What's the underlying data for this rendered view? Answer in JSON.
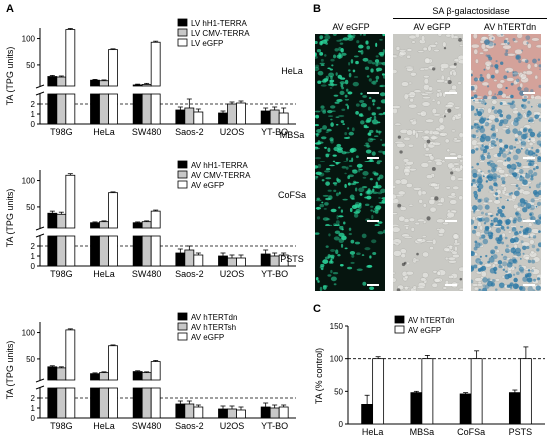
{
  "panel_letters": {
    "a": "A",
    "b": "B",
    "c": "C"
  },
  "panel_b": {
    "group_header": "SA β-galactosidase",
    "columns": [
      "AV eGFP",
      "AV eGFP",
      "AV hTERTdn"
    ],
    "rows": [
      "HeLa",
      "MBSa",
      "CoFSa",
      "PSTS"
    ]
  },
  "chart_data": [
    {
      "type": "bar",
      "title": "",
      "ylabel": "TA (TPG units)",
      "categories": [
        "T98G",
        "HeLa",
        "SW480",
        "Saos-2",
        "U2OS",
        "YT-BO"
      ],
      "axis_break": true,
      "ylim_lower": [
        0,
        3
      ],
      "ylim_upper": [
        10,
        120
      ],
      "yticks_lower": [
        0,
        1,
        2
      ],
      "yticks_upper": [
        50,
        100
      ],
      "reference_line": 2,
      "legend_position": "top-right",
      "series": [
        {
          "name": "LV hH1-TERRA",
          "color": "#000000",
          "values": [
            28,
            21,
            12,
            1.4,
            1.1,
            1.3
          ],
          "errors": [
            2,
            1.5,
            1.5,
            0.3,
            0.2,
            0.3
          ]
        },
        {
          "name": "LV CMV-TERRA",
          "color": "#c8c8c8",
          "values": [
            27,
            20,
            13,
            1.6,
            2.0,
            1.4
          ],
          "errors": [
            2,
            1.5,
            2,
            0.9,
            0.2,
            0.3
          ]
        },
        {
          "name": "LV eGFP",
          "color": "#ffffff",
          "values": [
            117,
            79,
            93,
            1.2,
            2.1,
            1.1
          ],
          "errors": [
            2,
            1.5,
            2,
            0.3,
            0.2,
            0.5
          ]
        }
      ]
    },
    {
      "type": "bar",
      "title": "",
      "ylabel": "TA (TPG units)",
      "categories": [
        "T98G",
        "HeLa",
        "SW480",
        "Saos-2",
        "U2OS",
        "YT-BO"
      ],
      "axis_break": true,
      "ylim_lower": [
        0,
        3
      ],
      "ylim_upper": [
        10,
        120
      ],
      "yticks_lower": [
        0,
        1,
        2
      ],
      "yticks_upper": [
        50,
        100
      ],
      "reference_line": 2,
      "legend_position": "top-right",
      "series": [
        {
          "name": "AV hH1-TERRA",
          "color": "#000000",
          "values": [
            38,
            20,
            20,
            1.3,
            1.0,
            1.2
          ],
          "errors": [
            4,
            1.5,
            1.5,
            0.4,
            0.3,
            0.4
          ]
        },
        {
          "name": "AV CMV-TERRA",
          "color": "#c8c8c8",
          "values": [
            36,
            22,
            22,
            1.6,
            0.8,
            1.0
          ],
          "errors": [
            4,
            1.5,
            1.5,
            0.4,
            0.3,
            0.3
          ]
        },
        {
          "name": "AV eGFP",
          "color": "#ffffff",
          "values": [
            110,
            77,
            42,
            1.1,
            0.8,
            1.1
          ],
          "errors": [
            3,
            1.5,
            2,
            0.2,
            0.3,
            0.2
          ]
        }
      ]
    },
    {
      "type": "bar",
      "title": "",
      "ylabel": "TA (TPG units)",
      "categories": [
        "T98G",
        "HeLa",
        "SW480",
        "Saos-2",
        "U2OS",
        "YT-BO"
      ],
      "axis_break": true,
      "ylim_lower": [
        0,
        3
      ],
      "ylim_upper": [
        10,
        120
      ],
      "yticks_lower": [
        0,
        1,
        2
      ],
      "yticks_upper": [
        50,
        100
      ],
      "reference_line": 2,
      "legend_position": "top-right",
      "series": [
        {
          "name": "AV hTERTdn",
          "color": "#000000",
          "values": [
            35,
            22,
            26,
            1.4,
            0.9,
            1.1
          ],
          "errors": [
            2,
            1.5,
            1.5,
            0.3,
            0.3,
            0.4
          ]
        },
        {
          "name": "AV hTERTsh",
          "color": "#c8c8c8",
          "values": [
            33,
            24,
            24,
            1.4,
            0.9,
            1.0
          ],
          "errors": [
            2,
            1.5,
            1.5,
            0.3,
            0.3,
            0.3
          ]
        },
        {
          "name": "AV eGFP",
          "color": "#ffffff",
          "values": [
            105,
            75,
            45,
            1.1,
            0.8,
            1.1
          ],
          "errors": [
            2,
            1.5,
            2,
            0.2,
            0.3,
            0.2
          ]
        }
      ]
    },
    {
      "type": "bar",
      "title": "",
      "ylabel": "TA (% control)",
      "categories": [
        "HeLa",
        "MBSa",
        "CoFSa",
        "PSTS"
      ],
      "ylim": [
        0,
        150
      ],
      "yticks": [
        0,
        50,
        100,
        150
      ],
      "reference_line": 100,
      "legend_position": "top-center",
      "series": [
        {
          "name": "AV hTERTdn",
          "color": "#000000",
          "values": [
            30,
            48,
            46,
            48
          ],
          "errors": [
            14,
            2,
            2,
            4
          ]
        },
        {
          "name": "AV eGFP",
          "color": "#ffffff",
          "values": [
            100,
            100,
            100,
            100
          ],
          "errors": [
            3,
            5,
            12,
            18
          ]
        }
      ]
    }
  ],
  "colors": {
    "black_bar": "#000000",
    "grey_bar": "#c8c8c8",
    "gfp_background": "#06150f",
    "gfp_cell": "#2ad49a",
    "brightfield": "#c9c9c4",
    "xgal_blue": "#2e7aa6",
    "hela_pink": "#d4a29a"
  }
}
